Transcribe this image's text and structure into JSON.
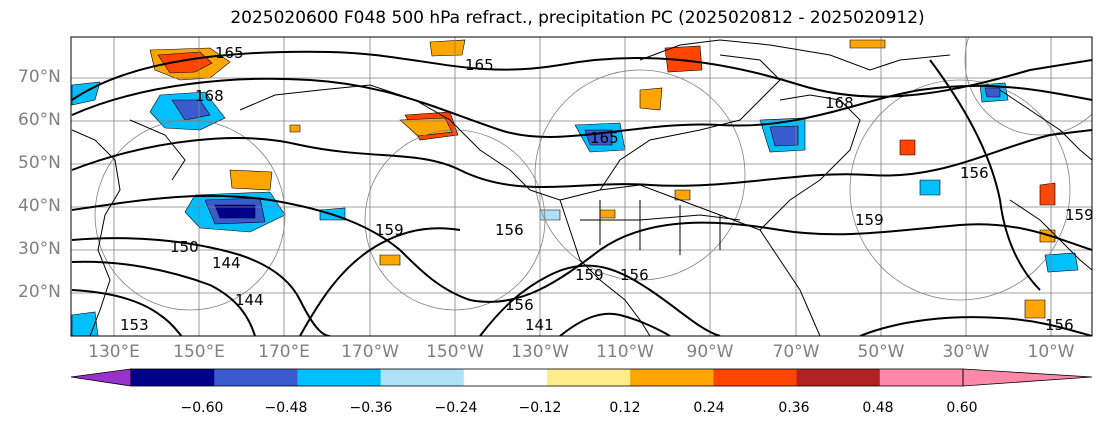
{
  "title": "2025020600 F048 500 hPa refract., precipitation PC (2025020812 - 2025020912)",
  "lat_labels": [
    "70°N",
    "60°N",
    "50°N",
    "40°N",
    "30°N",
    "20°N"
  ],
  "lon_labels": [
    "130°E",
    "150°E",
    "170°E",
    "170°W",
    "150°W",
    "130°W",
    "110°W",
    "90°W",
    "70°W",
    "50°W",
    "30°W",
    "10°W"
  ],
  "contour_labels": [
    "165",
    "168",
    "165",
    "168",
    "165",
    "159",
    "159",
    "156",
    "150",
    "144",
    "144",
    "141",
    "156",
    "159",
    "156",
    "153",
    "156",
    "156",
    "159"
  ],
  "colorbar": {
    "ticks": [
      "−0.60",
      "−0.48",
      "−0.36",
      "−0.24",
      "−0.12",
      "0.12",
      "0.24",
      "0.36",
      "0.48",
      "0.60"
    ],
    "colors": [
      "#9932cc",
      "#00008b",
      "#3a5bcd",
      "#00bfff",
      "#aee0f8",
      "#ffffff",
      "#ffec8b",
      "#ffa500",
      "#ff4500",
      "#b22222",
      "#ff88a8",
      "#ff88a8"
    ]
  },
  "colors": {
    "contour": "#000000",
    "coast": "#000000",
    "grid": "#808080",
    "axis_text": "#808080"
  }
}
